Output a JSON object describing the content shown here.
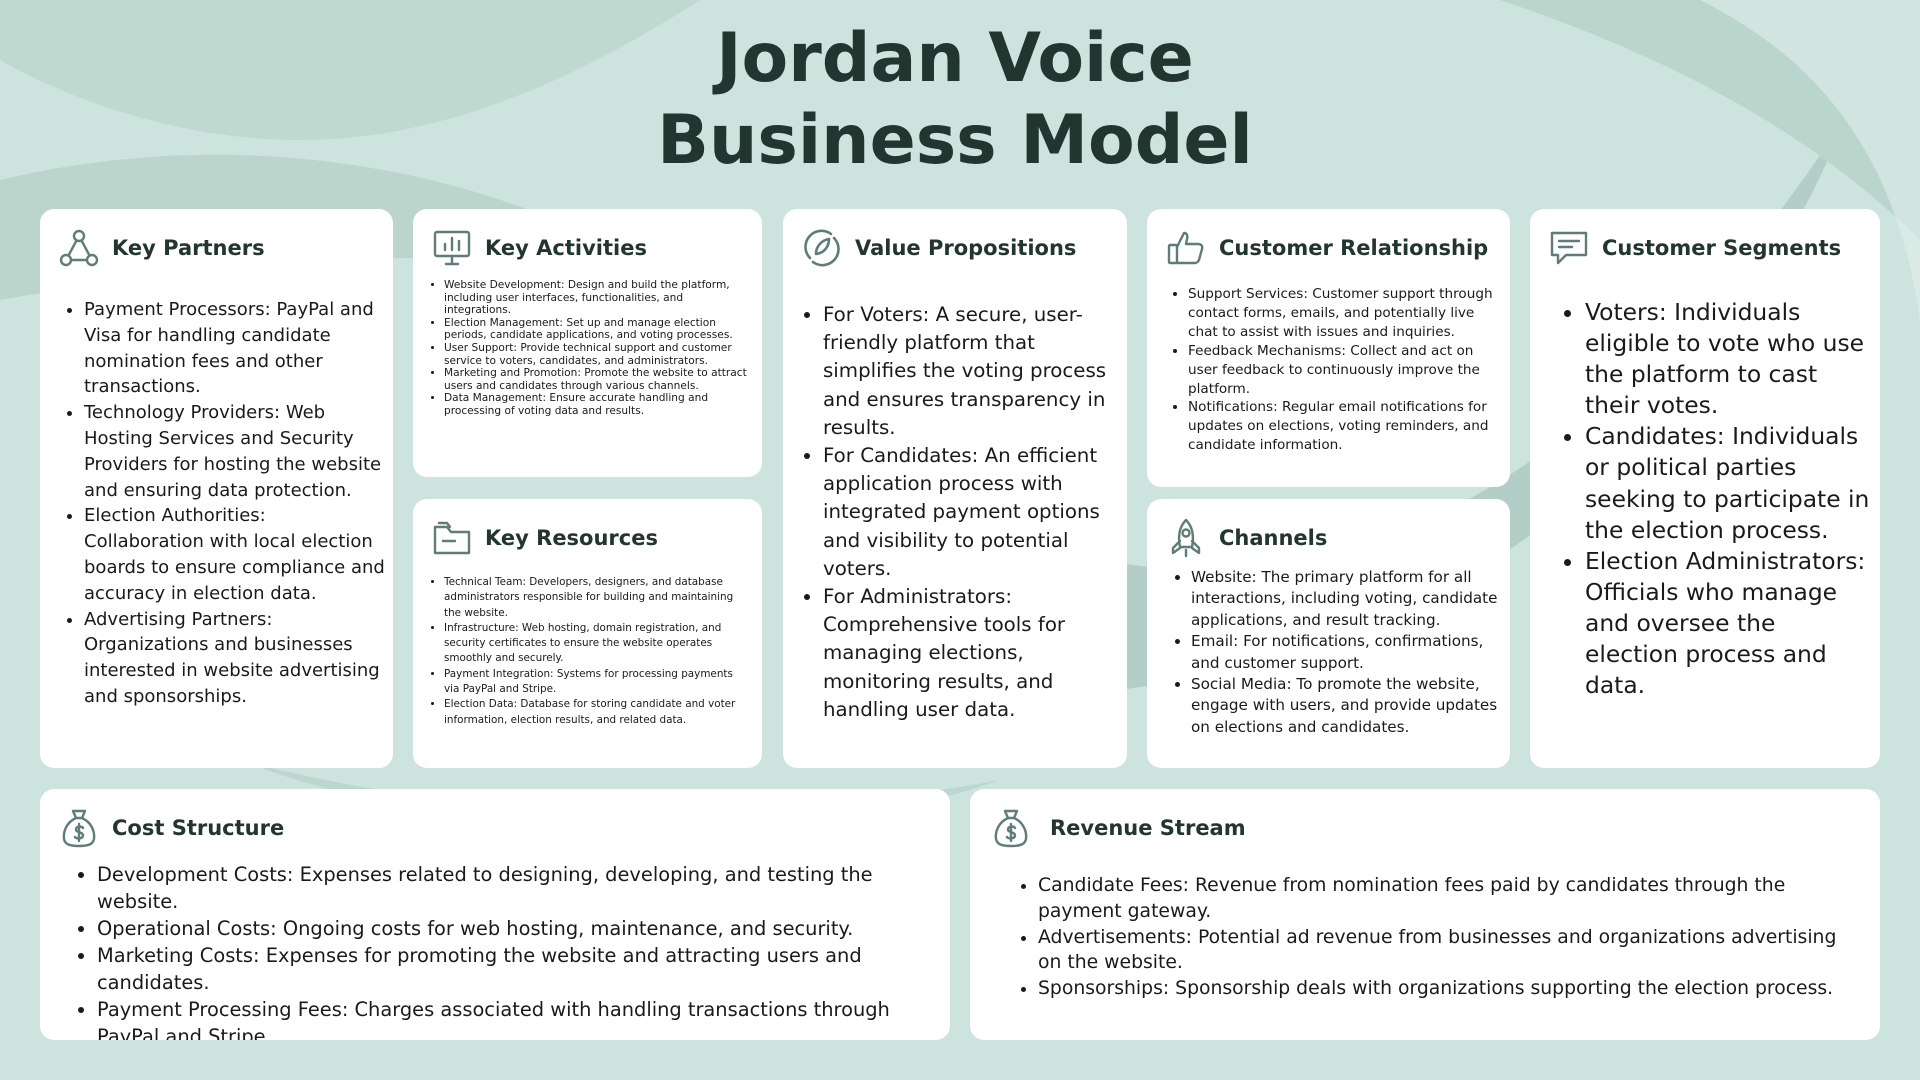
{
  "title": {
    "line1": "Jordan Voice",
    "line2": "Business Model"
  },
  "colors": {
    "background": "#cde3dd",
    "card": "#ffffff",
    "heading": "#22362f",
    "icon": "#5f7d74"
  },
  "key_partners": {
    "title": "Key Partners",
    "icon": "network-nodes-icon",
    "items": [
      "Payment Processors: PayPal and Visa for handling candidate nomination fees and other transactions.",
      "Technology Providers: Web Hosting Services and Security Providers for hosting the website and ensuring data protection.",
      "Election Authorities: Collaboration with local election boards to ensure compliance and accuracy in election data.",
      "Advertising Partners: Organizations and businesses interested in website advertising and sponsorships."
    ]
  },
  "key_activities": {
    "title": "Key Activities",
    "icon": "presentation-chart-icon",
    "items": [
      "Website Development: Design and build the platform, including user interfaces, functionalities, and integrations.",
      "Election Management: Set up and manage election periods, candidate applications, and voting processes.",
      "User Support: Provide technical support and customer service to voters, candidates, and administrators.",
      "Marketing and Promotion: Promote the website to attract users and candidates through various channels.",
      "Data Management: Ensure accurate handling and processing of voting data and results."
    ]
  },
  "key_resources": {
    "title": "Key Resources",
    "icon": "folder-icon",
    "items": [
      "Technical Team: Developers, designers, and database administrators responsible for building and maintaining the website.",
      "Infrastructure: Web hosting, domain registration, and security certificates to ensure the website operates smoothly and securely.",
      "Payment Integration: Systems for processing payments via PayPal and Stripe.",
      "Election Data: Database for storing candidate and voter information, election results, and related data."
    ]
  },
  "value_propositions": {
    "title": "Value Propositions",
    "icon": "refresh-leaf-icon",
    "items": [
      "For Voters: A secure, user-friendly platform that simplifies the voting process and ensures transparency in results.",
      "For Candidates: An efficient application process with integrated payment options and visibility to potential voters.",
      "For Administrators: Comprehensive tools for managing elections, monitoring results, and handling user data."
    ]
  },
  "customer_relationship": {
    "title": "Customer Relationship",
    "icon": "thumbs-up-icon",
    "items": [
      "Support Services: Customer support through contact forms, emails, and potentially live chat to assist with issues and inquiries.",
      "Feedback Mechanisms: Collect and act on user feedback to continuously improve the platform.",
      "Notifications: Regular email notifications for updates on elections, voting reminders, and candidate information."
    ]
  },
  "channels": {
    "title": "Channels",
    "icon": "rocket-icon",
    "items": [
      "Website: The primary platform for all interactions, including voting, candidate applications, and result tracking.",
      "Email: For notifications, confirmations, and customer support.",
      "Social Media: To promote the website, engage with users, and provide updates on elections and candidates."
    ]
  },
  "customer_segments": {
    "title": "Customer Segments",
    "icon": "chat-bubble-icon",
    "items": [
      "Voters: Individuals eligible to vote who use the platform to cast their votes.",
      "Candidates: Individuals or political parties seeking to participate in the election process.",
      "Election Administrators: Officials who manage and oversee the election process and data."
    ]
  },
  "cost_structure": {
    "title": "Cost Structure",
    "icon": "money-bag-icon",
    "items": [
      "Development Costs: Expenses related to designing, developing, and testing the website.",
      "Operational Costs: Ongoing costs for web hosting, maintenance, and security.",
      "Marketing Costs: Expenses for promoting the website and attracting users and candidates.",
      "Payment Processing Fees: Charges associated with handling transactions through PayPal and Stripe."
    ]
  },
  "revenue_stream": {
    "title": "Revenue Stream",
    "icon": "money-bag-icon",
    "items": [
      "Candidate Fees: Revenue from nomination fees paid by candidates through the payment gateway.",
      "Advertisements: Potential ad revenue from businesses and organizations advertising on the website.",
      "Sponsorships: Sponsorship deals with organizations supporting the election process."
    ]
  }
}
